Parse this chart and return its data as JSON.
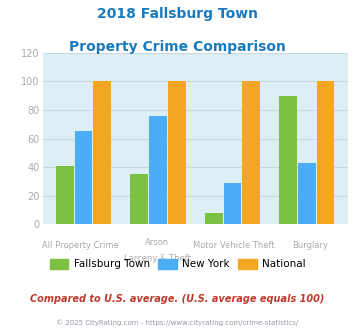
{
  "title_line1": "2018 Fallsburg Town",
  "title_line2": "Property Crime Comparison",
  "title_color": "#1a7abf",
  "fallsburg": [
    41,
    35,
    8,
    90
  ],
  "newyork": [
    65,
    76,
    29,
    43
  ],
  "national": [
    100,
    100,
    100,
    100
  ],
  "color_fallsburg": "#7dc142",
  "color_newyork": "#4badf5",
  "color_national": "#f5a623",
  "ylim": [
    0,
    120
  ],
  "yticks": [
    0,
    20,
    40,
    60,
    80,
    100,
    120
  ],
  "grid_color": "#c8d8e0",
  "bg_color": "#ddeef5",
  "legend_labels": [
    "Fallsburg Town",
    "New York",
    "National"
  ],
  "label_top": [
    "All Property Crime",
    "Arson",
    "Motor Vehicle Theft",
    "Burglary"
  ],
  "label_bot": [
    "",
    "Larceny & Theft",
    "",
    ""
  ],
  "footnote1": "Compared to U.S. average. (U.S. average equals 100)",
  "footnote2": "© 2025 CityRating.com - https://www.cityrating.com/crime-statistics/",
  "footnote1_color": "#c0392b",
  "footnote2_color": "#9999aa",
  "tick_label_color": "#aaaaaa"
}
